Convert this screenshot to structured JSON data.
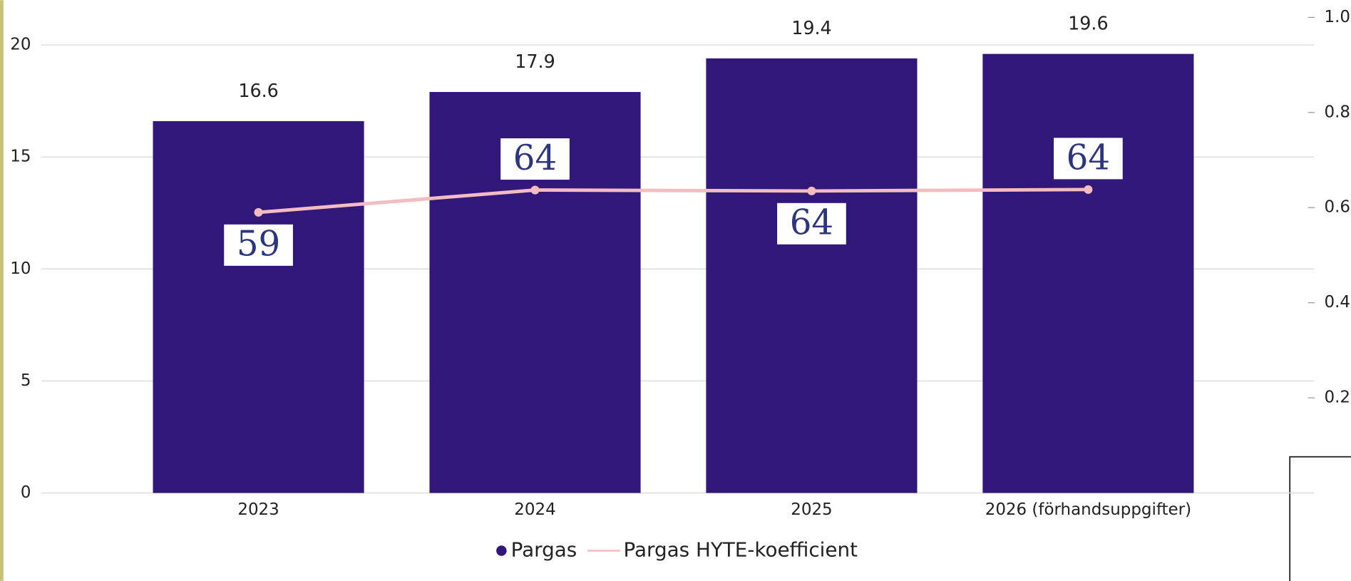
{
  "chart_data": {
    "type": "bar",
    "categories": [
      "2023",
      "2024",
      "2025",
      "2026 (förhandsuppgifter)"
    ],
    "ylim": [
      0,
      21.2
    ],
    "yticks": [
      0,
      5,
      10,
      15,
      20
    ],
    "y2lim": [
      0,
      1
    ],
    "y2ticks": [
      0.2,
      0.4,
      0.6,
      {
        "value": 1,
        "label": "1.0"
      },
      0.8
    ],
    "grid": true,
    "legend": "bottom",
    "series": [
      {
        "name": "Pargas",
        "type": "bar",
        "color": "#32177a",
        "values": [
          16.6,
          17.9,
          19.4,
          19.6
        ]
      },
      {
        "name": "Pargas HYTE-koefficient",
        "type": "line",
        "axis": "y2",
        "color": "#f4bcc0",
        "values": [
          0.59,
          0.637,
          0.635,
          0.638
        ],
        "value_labels": [
          "59",
          "64",
          "64",
          "64"
        ]
      }
    ]
  }
}
